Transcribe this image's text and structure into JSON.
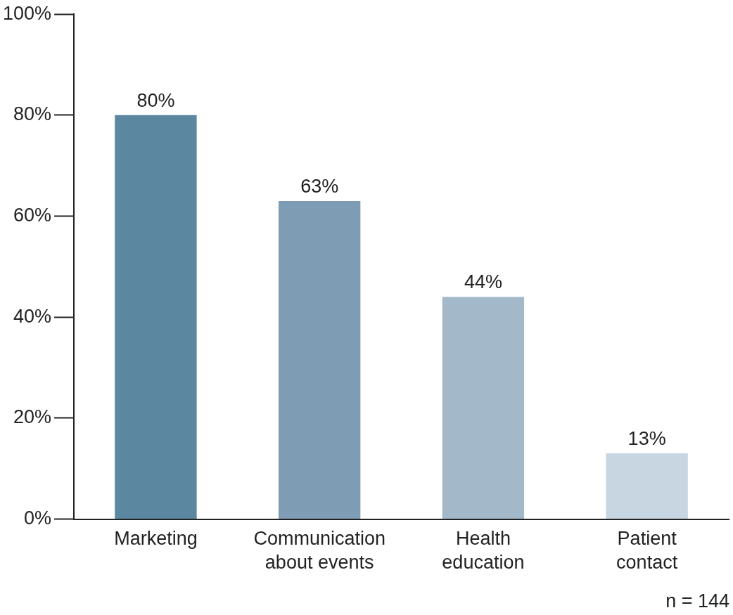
{
  "chart_data": {
    "type": "bar",
    "categories": [
      "Marketing",
      "Communication about events",
      "Health education",
      "Patient contact"
    ],
    "series": [
      {
        "colors": [
          "#5b87a0",
          "#7f9cb5",
          "#a3b8c8",
          "#c8d6e1"
        ],
        "values": [
          80,
          63,
          44,
          13
        ],
        "value_labels": [
          "80%",
          "63%",
          "44%",
          "13%"
        ]
      }
    ],
    "ylim": [
      0,
      100
    ],
    "yticks": [
      {
        "value": 0,
        "label": "0%"
      },
      {
        "value": 20,
        "label": "20%"
      },
      {
        "value": 40,
        "label": "40%"
      },
      {
        "value": 60,
        "label": "60%"
      },
      {
        "value": 80,
        "label": "80%"
      },
      {
        "value": 100,
        "label": "100%"
      }
    ],
    "grid": false,
    "legend": false,
    "annotations": [
      "n = 144"
    ]
  }
}
